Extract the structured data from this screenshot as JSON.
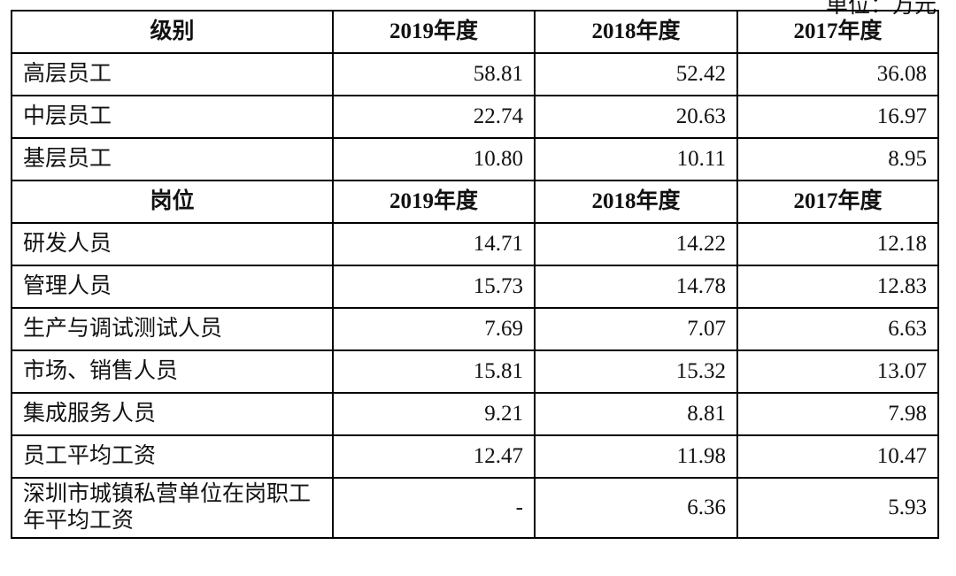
{
  "unit": "单位：万元",
  "sections": [
    {
      "header": [
        "级别",
        "2019年度",
        "2018年度",
        "2017年度"
      ],
      "rows": [
        [
          "高层员工",
          "58.81",
          "52.42",
          "36.08"
        ],
        [
          "中层员工",
          "22.74",
          "20.63",
          "16.97"
        ],
        [
          "基层员工",
          "10.80",
          "10.11",
          "8.95"
        ]
      ]
    },
    {
      "header": [
        "岗位",
        "2019年度",
        "2018年度",
        "2017年度"
      ],
      "rows": [
        [
          "研发人员",
          "14.71",
          "14.22",
          "12.18"
        ],
        [
          "管理人员",
          "15.73",
          "14.78",
          "12.83"
        ],
        [
          "生产与调试测试人员",
          "7.69",
          "7.07",
          "6.63"
        ],
        [
          "市场、销售人员",
          "15.81",
          "15.32",
          "13.07"
        ],
        [
          "集成服务人员",
          "9.21",
          "8.81",
          "7.98"
        ],
        [
          "员工平均工资",
          "12.47",
          "11.98",
          "10.47"
        ],
        [
          "深圳市城镇私营单位在岗职工年平均工资",
          "-",
          "6.36",
          "5.93"
        ]
      ]
    }
  ]
}
